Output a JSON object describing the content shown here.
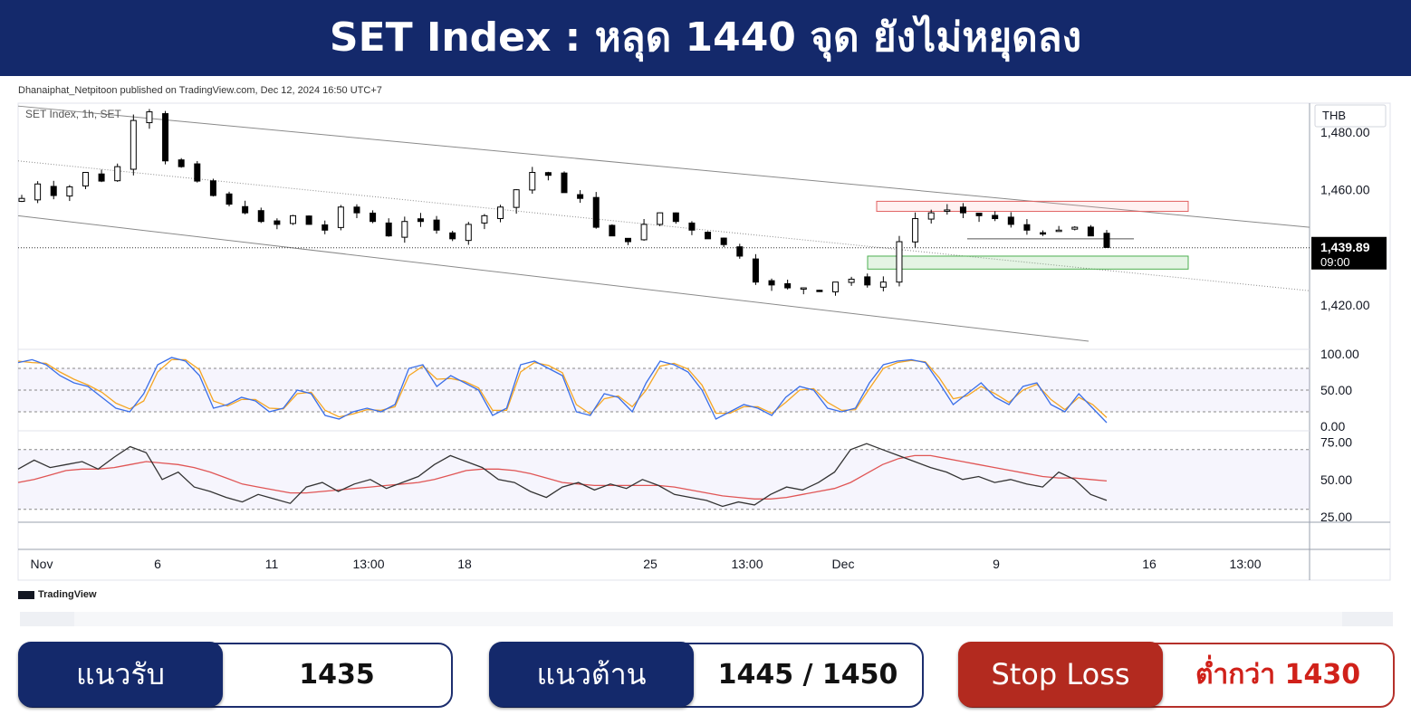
{
  "banner": {
    "title": "SET Index : หลุด 1440 จุด ยังไม่หยุดลง"
  },
  "published_line": "Dhanaiphat_Netpitoon published on TradingView.com, Dec 12, 2024 16:50 UTC+7",
  "brand": "TradingView",
  "colors": {
    "banner": "#14296b",
    "up": "#ffffff",
    "down": "#000000",
    "resistance_zone": "#e06060",
    "support_zone": "#4caf50",
    "stoch_k": "#3b6fe8",
    "stoch_d": "#f5a623",
    "rsi": "#333333",
    "rsi_ma": "#e05555"
  },
  "levels": {
    "support": {
      "label": "แนวรับ",
      "value": "1435"
    },
    "resistance": {
      "label": "แนวต้าน",
      "value": "1445 / 1450"
    },
    "stop_loss": {
      "label": "Stop Loss",
      "value": "ต่ำกว่า 1430"
    }
  },
  "chart_data": {
    "type": "candlestick",
    "symbol_label": "SET Index, 1h, SET",
    "currency": "THB",
    "last_price": "1,439.89",
    "last_time": "09:00",
    "y_ticks": [
      "1,480.00",
      "1,460.00",
      "1,420.00"
    ],
    "y_tick_values": [
      1480,
      1460,
      1420
    ],
    "ylim": [
      1405,
      1490
    ],
    "x_ticks": [
      "Nov",
      "6",
      "11",
      "13:00",
      "18",
      "25",
      "13:00",
      "Dec",
      "9",
      "16",
      "13:00"
    ],
    "close_path": [
      1457,
      1462,
      1458,
      1461,
      1466,
      1463,
      1468,
      1484,
      1487,
      1470,
      1468,
      1463,
      1458,
      1455,
      1452,
      1449,
      1448,
      1451,
      1448,
      1446,
      1454,
      1452,
      1449,
      1444,
      1449,
      1449,
      1446,
      1443,
      1448,
      1451,
      1454,
      1460,
      1466,
      1465,
      1459,
      1457,
      1447,
      1444,
      1442,
      1448,
      1452,
      1449,
      1446,
      1443,
      1441,
      1437,
      1428,
      1427,
      1426,
      1426,
      1425,
      1428,
      1429,
      1427,
      1428,
      1442,
      1450,
      1452,
      1453,
      1452,
      1451,
      1450,
      1448,
      1446,
      1445,
      1446,
      1447,
      1444,
      1440
    ],
    "resistance_zone": [
      1452.5,
      1456
    ],
    "support_zone": [
      1432.5,
      1437
    ],
    "indicators": [
      {
        "name": "stochastic",
        "y_ticks": [
          "100.00",
          "50.00",
          "0.00"
        ],
        "y_tick_values": [
          100,
          50,
          0
        ],
        "ylim": [
          -5,
          105
        ],
        "levels": [
          80,
          50,
          20
        ],
        "k": [
          88,
          92,
          85,
          70,
          60,
          55,
          40,
          25,
          20,
          45,
          85,
          95,
          90,
          70,
          25,
          30,
          40,
          35,
          20,
          25,
          50,
          45,
          15,
          10,
          20,
          25,
          20,
          30,
          80,
          85,
          55,
          70,
          60,
          50,
          15,
          25,
          85,
          90,
          80,
          70,
          20,
          15,
          45,
          40,
          20,
          60,
          90,
          85,
          75,
          50,
          10,
          20,
          30,
          25,
          15,
          40,
          55,
          50,
          25,
          20,
          25,
          60,
          85,
          90,
          92,
          88,
          60,
          30,
          45,
          60,
          40,
          30,
          55,
          60,
          30,
          20,
          45,
          25,
          5
        ],
        "d": [
          90,
          88,
          87,
          75,
          65,
          57,
          47,
          32,
          24,
          35,
          75,
          92,
          92,
          78,
          35,
          28,
          37,
          37,
          25,
          24,
          45,
          47,
          22,
          13,
          17,
          23,
          22,
          27,
          70,
          83,
          65,
          66,
          62,
          53,
          22,
          22,
          75,
          88,
          84,
          74,
          30,
          17,
          38,
          42,
          27,
          50,
          83,
          87,
          79,
          57,
          18,
          18,
          27,
          27,
          18,
          33,
          50,
          52,
          33,
          22,
          23,
          52,
          80,
          88,
          91,
          89,
          67,
          38,
          42,
          55,
          45,
          33,
          50,
          58,
          37,
          23,
          40,
          30,
          12
        ]
      },
      {
        "name": "rsi",
        "y_ticks": [
          "75.00",
          "50.00",
          "25.00"
        ],
        "y_tick_values": [
          75,
          50,
          25
        ],
        "ylim": [
          22,
          82
        ],
        "levels": [
          70,
          30
        ],
        "rsi": [
          57,
          63,
          58,
          60,
          62,
          57,
          65,
          72,
          68,
          50,
          55,
          45,
          42,
          38,
          35,
          40,
          37,
          34,
          45,
          48,
          42,
          47,
          50,
          44,
          48,
          52,
          60,
          66,
          62,
          58,
          50,
          48,
          42,
          38,
          45,
          48,
          43,
          47,
          44,
          50,
          46,
          40,
          38,
          36,
          32,
          35,
          33,
          40,
          45,
          43,
          48,
          55,
          70,
          74,
          70,
          66,
          62,
          58,
          55,
          50,
          52,
          48,
          50,
          47,
          45,
          55,
          50,
          40,
          36
        ],
        "ma": [
          48,
          50,
          53,
          56,
          57,
          57,
          58,
          60,
          62,
          61,
          60,
          58,
          55,
          51,
          47,
          45,
          43,
          41,
          41,
          42,
          43,
          44,
          45,
          46,
          47,
          48,
          50,
          53,
          56,
          57,
          57,
          56,
          54,
          51,
          48,
          47,
          46,
          46,
          46,
          46,
          46,
          45,
          43,
          41,
          39,
          38,
          37,
          37,
          38,
          40,
          42,
          44,
          48,
          54,
          60,
          64,
          66,
          66,
          64,
          62,
          60,
          58,
          56,
          54,
          52,
          51,
          51,
          50,
          49
        ]
      }
    ]
  }
}
